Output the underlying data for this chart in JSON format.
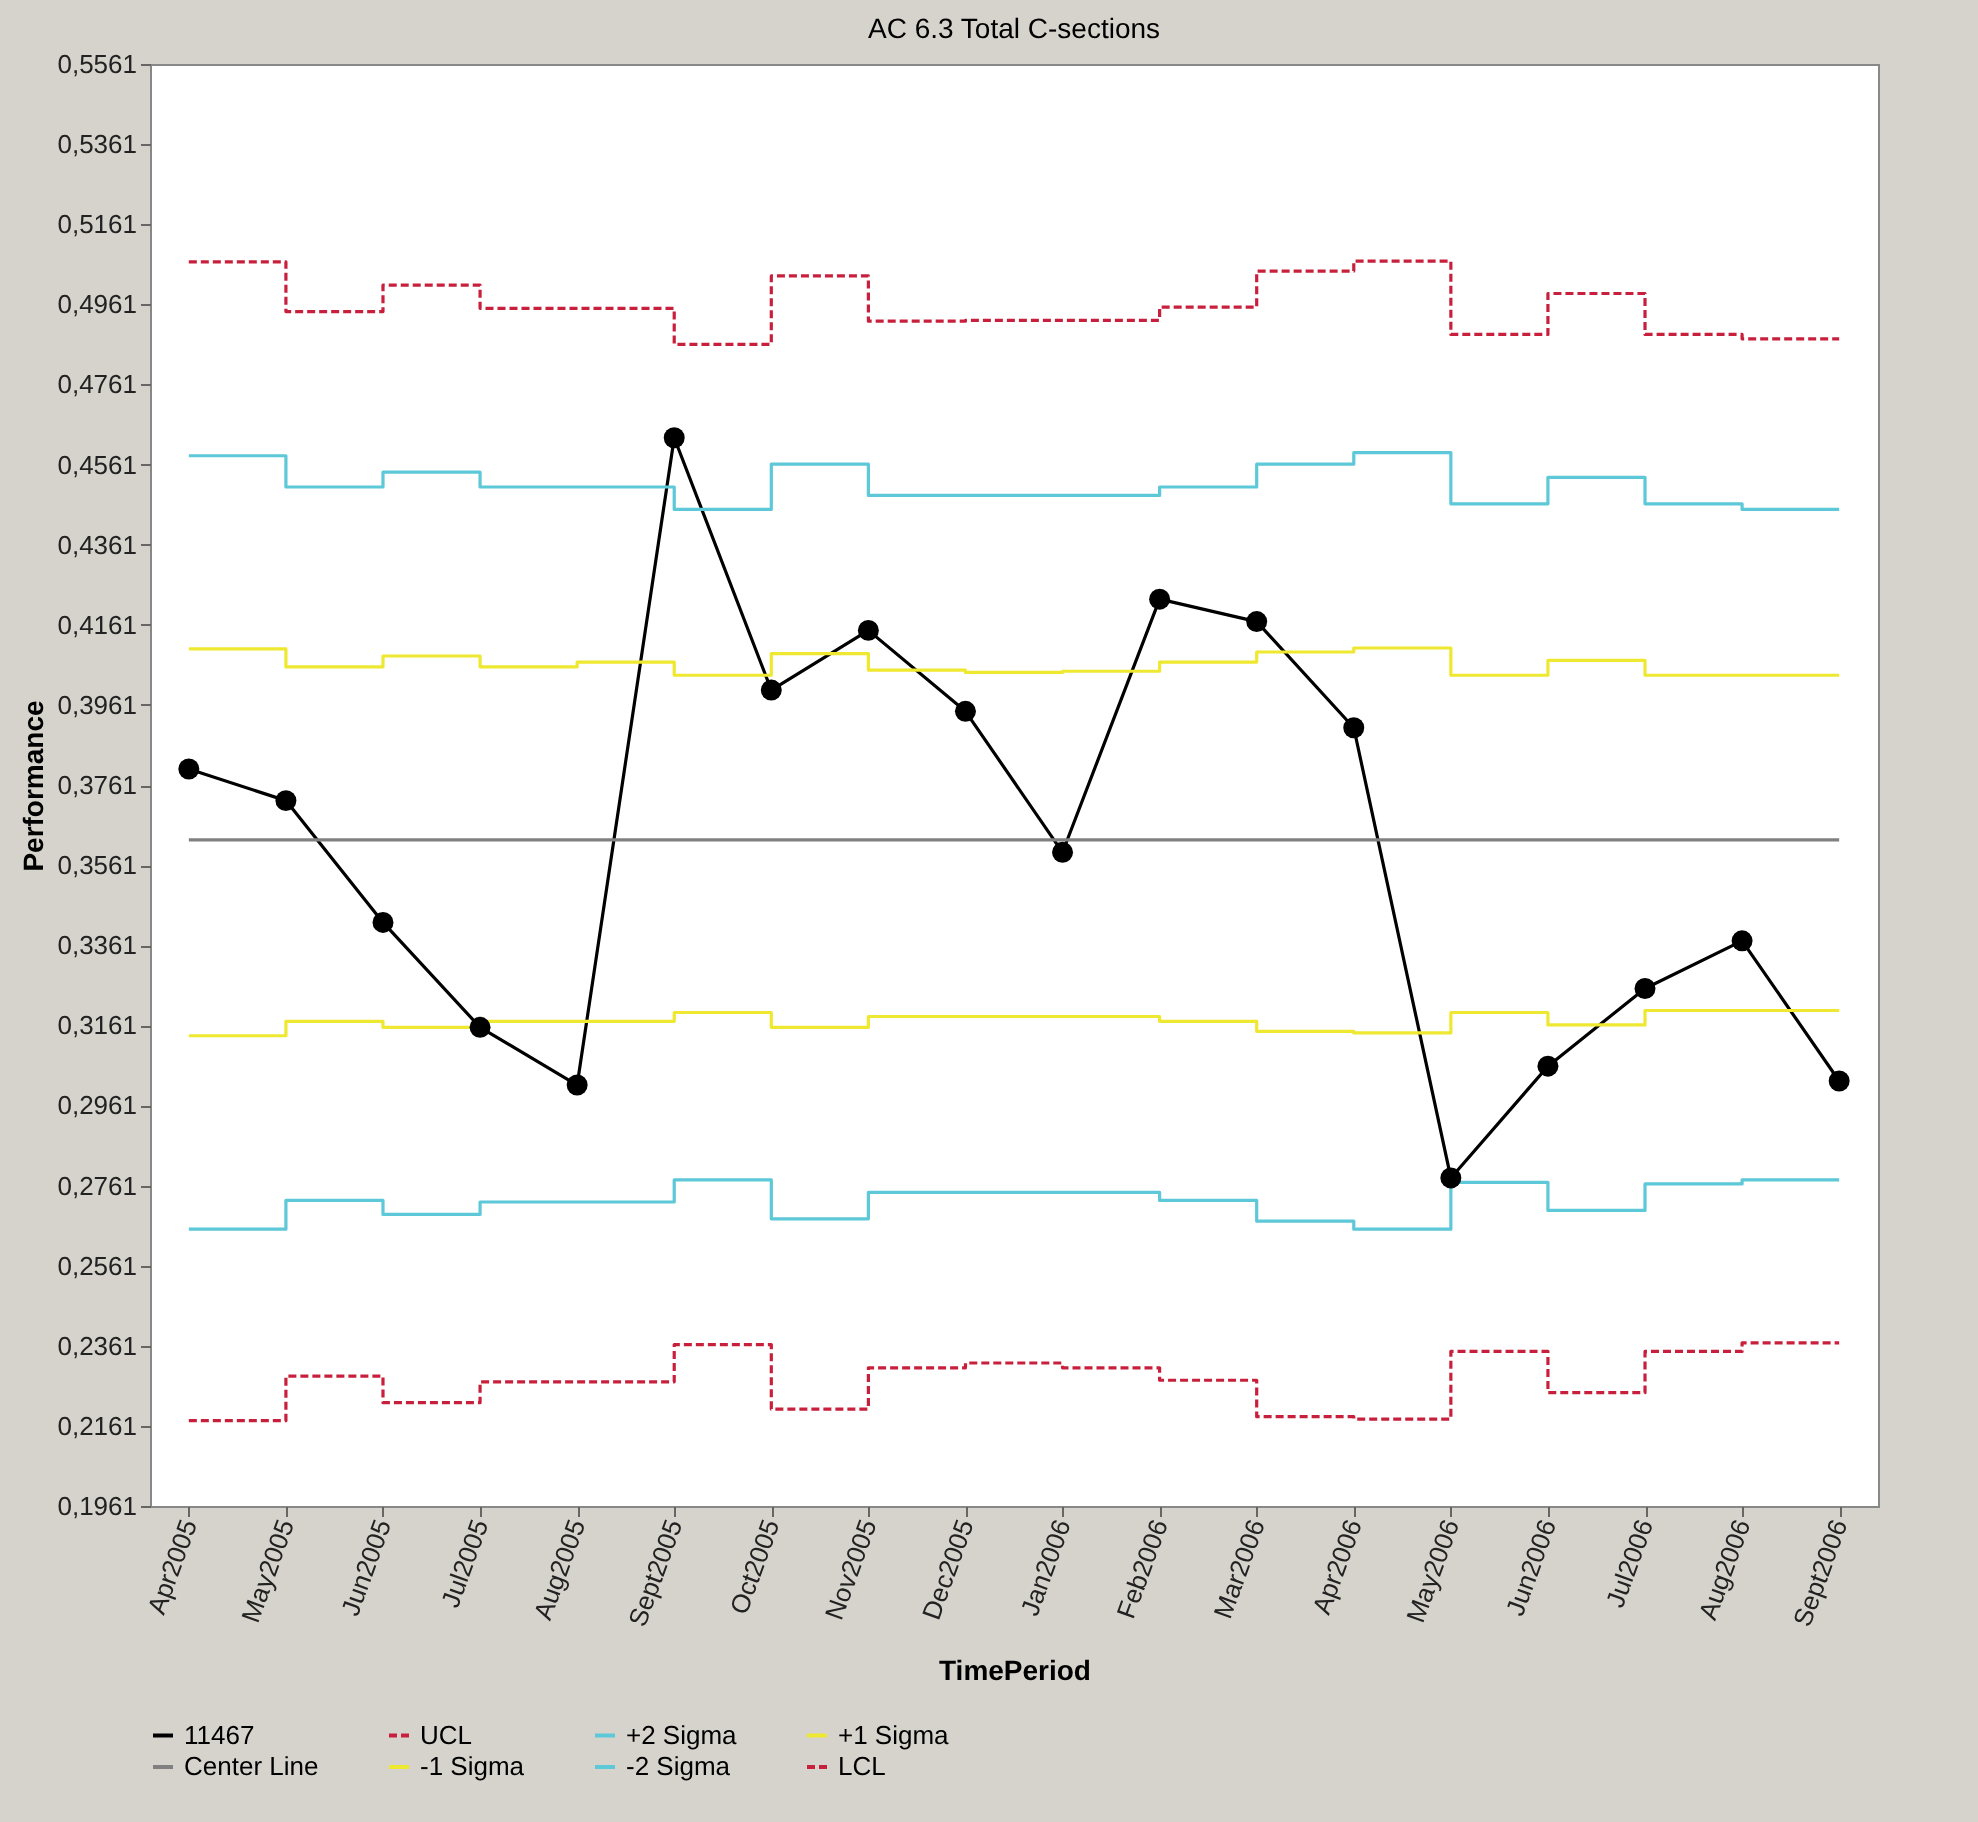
{
  "chart_data": {
    "type": "line",
    "title": "AC 6.3 Total C-sections",
    "xlabel": "TimePeriod",
    "ylabel": "Performance",
    "categories": [
      "Apr2005",
      "May2005",
      "Jun2005",
      "Jul2005",
      "Aug2005",
      "Sept2005",
      "Oct2005",
      "Nov2005",
      "Dec2005",
      "Jan2006",
      "Feb2006",
      "Mar2006",
      "Apr2006",
      "May2006",
      "Jun2006",
      "Jul2006",
      "Aug2006",
      "Sept2006"
    ],
    "ylim": [
      0.1961,
      0.5561
    ],
    "yticks": [
      {
        "value": 0.1961,
        "label": "0,1961"
      },
      {
        "value": 0.2161,
        "label": "0,2161"
      },
      {
        "value": 0.2361,
        "label": "0,2361"
      },
      {
        "value": 0.2561,
        "label": "0,2561"
      },
      {
        "value": 0.2761,
        "label": "0,2761"
      },
      {
        "value": 0.2961,
        "label": "0,2961"
      },
      {
        "value": 0.3161,
        "label": "0,3161"
      },
      {
        "value": 0.3361,
        "label": "0,3361"
      },
      {
        "value": 0.3561,
        "label": "0,3561"
      },
      {
        "value": 0.3761,
        "label": "0,3761"
      },
      {
        "value": 0.3961,
        "label": "0,3961"
      },
      {
        "value": 0.4161,
        "label": "0,4161"
      },
      {
        "value": 0.4361,
        "label": "0,4361"
      },
      {
        "value": 0.4561,
        "label": "0,4561"
      },
      {
        "value": 0.4761,
        "label": "0,4761"
      },
      {
        "value": 0.4961,
        "label": "0,4961"
      },
      {
        "value": 0.5161,
        "label": "0,5161"
      },
      {
        "value": 0.5361,
        "label": "0,5361"
      },
      {
        "value": 0.5561,
        "label": "0,5561"
      }
    ],
    "grid": false,
    "legend": "bottom",
    "series": [
      {
        "name": "11467",
        "type": "line",
        "marker": "circle",
        "line_style": "solid",
        "color": "#000000",
        "values": [
          0.3801,
          0.3722,
          0.3418,
          0.3156,
          0.3012,
          0.4628,
          0.3998,
          0.4147,
          0.3945,
          0.3593,
          0.4225,
          0.4169,
          0.3904,
          0.278,
          0.3059,
          0.3253,
          0.3372,
          0.3022
        ]
      },
      {
        "name": "UCL",
        "type": "step",
        "marker": "none",
        "line_style": "dashed",
        "color": "#c8203c",
        "values": [
          0.5067,
          0.4943,
          0.5009,
          0.4951,
          0.4951,
          0.4861,
          0.5032,
          0.4919,
          0.4921,
          0.4921,
          0.4954,
          0.5044,
          0.5069,
          0.4886,
          0.4988,
          0.4886,
          0.4875,
          0.4875
        ]
      },
      {
        "name": "+2 Sigma",
        "type": "step",
        "marker": "none",
        "line_style": "solid",
        "color": "#5cc8d8",
        "values": [
          0.4583,
          0.4505,
          0.4542,
          0.4505,
          0.4505,
          0.4449,
          0.4562,
          0.4484,
          0.4484,
          0.4484,
          0.4505,
          0.4562,
          0.4591,
          0.4463,
          0.4529,
          0.4463,
          0.4449,
          0.4449
        ]
      },
      {
        "name": "+1 Sigma",
        "type": "step",
        "marker": "none",
        "line_style": "solid",
        "color": "#eee830",
        "values": [
          0.4101,
          0.4056,
          0.4083,
          0.4056,
          0.4068,
          0.4035,
          0.4089,
          0.4048,
          0.4042,
          0.4045,
          0.4068,
          0.4093,
          0.4103,
          0.4035,
          0.4072,
          0.4035,
          0.4035,
          0.4035
        ]
      },
      {
        "name": "Center Line",
        "type": "step",
        "marker": "none",
        "line_style": "solid",
        "color": "#808080",
        "values": [
          0.3624,
          0.3624,
          0.3624,
          0.3624,
          0.3624,
          0.3624,
          0.3624,
          0.3624,
          0.3624,
          0.3624,
          0.3624,
          0.3624,
          0.3624,
          0.3624,
          0.3624,
          0.3624,
          0.3624,
          0.3624
        ]
      },
      {
        "name": "-1 Sigma",
        "type": "step",
        "marker": "none",
        "line_style": "solid",
        "color": "#eee830",
        "values": [
          0.3135,
          0.3171,
          0.3156,
          0.3171,
          0.3171,
          0.3193,
          0.3156,
          0.3183,
          0.3183,
          0.3183,
          0.3171,
          0.3146,
          0.3142,
          0.3193,
          0.3162,
          0.3198,
          0.3198,
          0.3198
        ]
      },
      {
        "name": "-2 Sigma",
        "type": "step",
        "marker": "none",
        "line_style": "solid",
        "color": "#5cc8d8",
        "values": [
          0.2652,
          0.2724,
          0.2689,
          0.272,
          0.272,
          0.2775,
          0.2678,
          0.2744,
          0.2744,
          0.2744,
          0.2724,
          0.2672,
          0.2652,
          0.2769,
          0.2699,
          0.2765,
          0.2775,
          0.2775
        ]
      },
      {
        "name": "LCL",
        "type": "step",
        "marker": "none",
        "line_style": "dashed",
        "color": "#c8203c",
        "values": [
          0.2174,
          0.2285,
          0.2219,
          0.2271,
          0.2271,
          0.2364,
          0.2203,
          0.2306,
          0.2318,
          0.2306,
          0.2275,
          0.2184,
          0.2178,
          0.2347,
          0.2244,
          0.2347,
          0.2368,
          0.2368
        ]
      }
    ]
  }
}
